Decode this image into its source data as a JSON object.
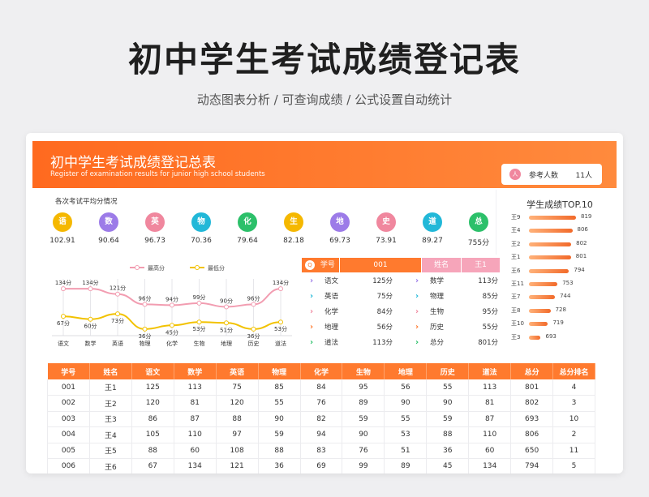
{
  "page": {
    "title": "初中学生考试成绩登记表",
    "subtitle": "动态图表分析 / 可查询成绩 / 公式设置自动统计"
  },
  "banner": {
    "title": "初中学生考试成绩登记总表",
    "subtitle": "Register of examination results for junior high school students",
    "count_icon": "人",
    "count_label": "参考人数",
    "count_value": "11人"
  },
  "averages": {
    "title": "各次考试平均分情况",
    "items": [
      {
        "label": "语",
        "value": "102.91",
        "color": "#f5b800"
      },
      {
        "label": "数",
        "value": "90.64",
        "color": "#9c7be8"
      },
      {
        "label": "英",
        "value": "96.73",
        "color": "#f0879e"
      },
      {
        "label": "物",
        "value": "70.36",
        "color": "#22b8d8"
      },
      {
        "label": "化",
        "value": "79.64",
        "color": "#2cc06a"
      },
      {
        "label": "生",
        "value": "82.18",
        "color": "#f5b800"
      },
      {
        "label": "地",
        "value": "69.73",
        "color": "#9c7be8"
      },
      {
        "label": "史",
        "value": "73.91",
        "color": "#f0879e"
      },
      {
        "label": "道",
        "value": "89.27",
        "color": "#22b8d8"
      },
      {
        "label": "总",
        "value": "755分",
        "color": "#2cc06a"
      }
    ]
  },
  "top10": {
    "title": "学生成绩TOP.10",
    "rows": [
      {
        "name": "王9",
        "score": 819
      },
      {
        "name": "王4",
        "score": 806
      },
      {
        "name": "王2",
        "score": 802
      },
      {
        "name": "王1",
        "score": 801
      },
      {
        "name": "王6",
        "score": 794
      },
      {
        "name": "王11",
        "score": 753
      },
      {
        "name": "王7",
        "score": 744
      },
      {
        "name": "王8",
        "score": 728
      },
      {
        "name": "王10",
        "score": 719
      },
      {
        "name": "王3",
        "score": 693
      }
    ]
  },
  "chart_data": {
    "type": "line",
    "categories": [
      "语文",
      "数学",
      "英语",
      "物理",
      "化学",
      "生物",
      "地理",
      "历史",
      "道法"
    ],
    "series": [
      {
        "name": "最高分",
        "values": [
          134,
          134,
          121,
          96,
          94,
          99,
          90,
          96,
          134
        ],
        "color": "#f29db1"
      },
      {
        "name": "最低分",
        "values": [
          67,
          60,
          73,
          36,
          45,
          53,
          51,
          36,
          53
        ],
        "color": "#f2c200"
      }
    ],
    "high_labels": [
      "134分",
      "134分",
      "121分",
      "96分",
      "94分",
      "99分",
      "90分",
      "96分",
      "134分"
    ],
    "low_labels": [
      "67分",
      "60分",
      "73分",
      "36分",
      "45分",
      "53分",
      "51分",
      "36分",
      "53分"
    ],
    "ylim": [
      20,
      150
    ],
    "legend_position": "top"
  },
  "query": {
    "icon": "Q",
    "id_label": "学号",
    "id_value": "001",
    "name_label": "姓名",
    "name_value": "王1",
    "left": [
      {
        "subject": "语文",
        "score": "125分",
        "color": "#9c7be8"
      },
      {
        "subject": "英语",
        "score": "75分",
        "color": "#22b8d8"
      },
      {
        "subject": "化学",
        "score": "84分",
        "color": "#f0879e"
      },
      {
        "subject": "地理",
        "score": "56分",
        "color": "#ff7a2e"
      },
      {
        "subject": "道法",
        "score": "113分",
        "color": "#2cc06a"
      }
    ],
    "right": [
      {
        "subject": "数学",
        "score": "113分",
        "color": "#9c7be8"
      },
      {
        "subject": "物理",
        "score": "85分",
        "color": "#22b8d8"
      },
      {
        "subject": "生物",
        "score": "95分",
        "color": "#f0879e"
      },
      {
        "subject": "历史",
        "score": "55分",
        "color": "#ff7a2e"
      },
      {
        "subject": "总分",
        "score": "801分",
        "color": "#2cc06a"
      }
    ]
  },
  "table": {
    "headers": [
      "学号",
      "姓名",
      "语文",
      "数学",
      "英语",
      "物理",
      "化学",
      "生物",
      "地理",
      "历史",
      "道法",
      "总分",
      "总分排名"
    ],
    "rows": [
      [
        "001",
        "王1",
        "125",
        "113",
        "75",
        "85",
        "84",
        "95",
        "56",
        "55",
        "113",
        "801",
        "4"
      ],
      [
        "002",
        "王2",
        "120",
        "81",
        "120",
        "55",
        "76",
        "89",
        "90",
        "90",
        "81",
        "802",
        "3"
      ],
      [
        "003",
        "王3",
        "86",
        "87",
        "88",
        "90",
        "82",
        "59",
        "55",
        "59",
        "87",
        "693",
        "10"
      ],
      [
        "004",
        "王4",
        "105",
        "110",
        "97",
        "59",
        "94",
        "90",
        "53",
        "88",
        "110",
        "806",
        "2"
      ],
      [
        "005",
        "王5",
        "88",
        "60",
        "108",
        "88",
        "83",
        "76",
        "51",
        "36",
        "60",
        "650",
        "11"
      ],
      [
        "006",
        "王6",
        "67",
        "134",
        "121",
        "36",
        "69",
        "99",
        "89",
        "45",
        "134",
        "794",
        "5"
      ]
    ]
  }
}
